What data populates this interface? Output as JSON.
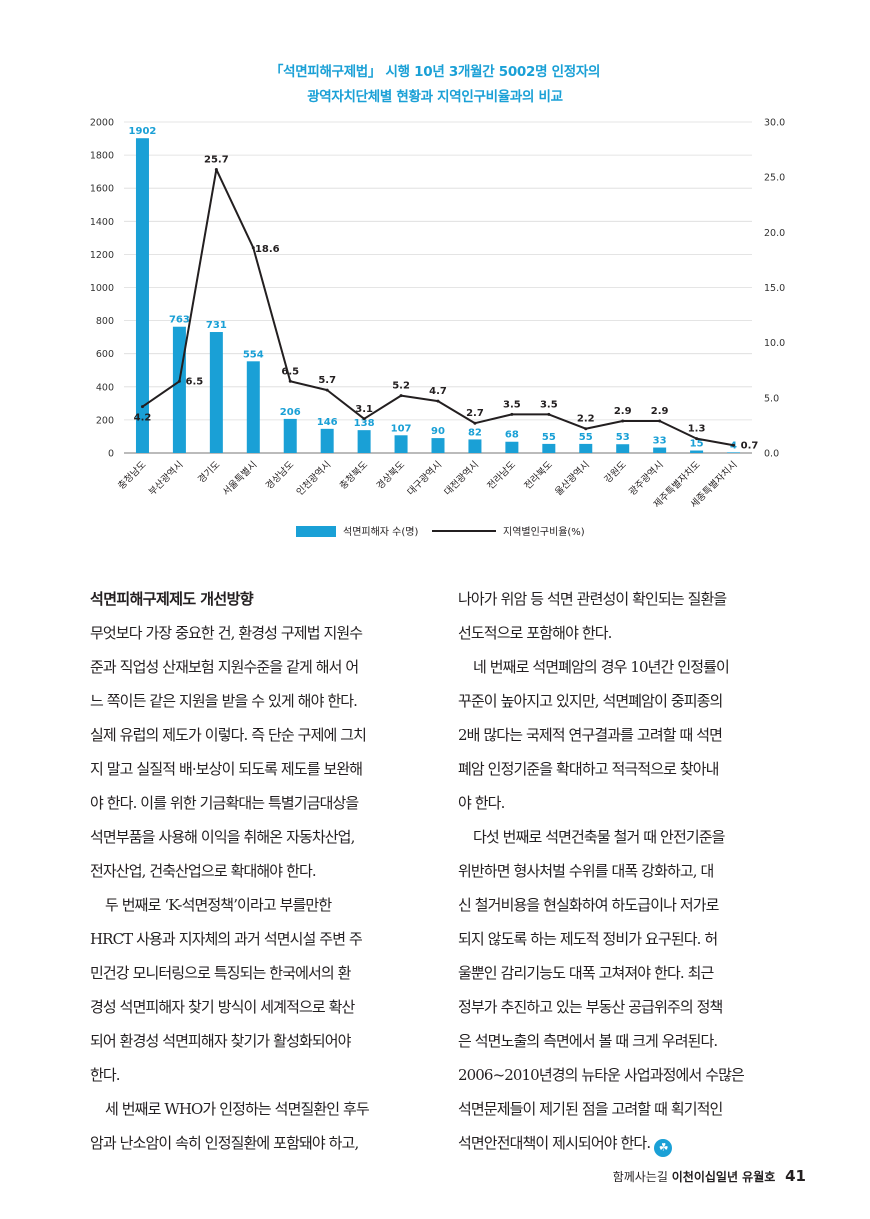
{
  "chart_data": {
    "type": "bar",
    "title_lines": [
      "「석면피해구제법」 시행 10년 3개월간 5002명 인정자의",
      "광역자치단체별 현황과 지역인구비율과의 비교"
    ],
    "categories": [
      "충청남도",
      "부산광역시",
      "경기도",
      "서울특별시",
      "경상남도",
      "인천광역시",
      "충청북도",
      "경상북도",
      "대구광역시",
      "대전광역시",
      "전라남도",
      "전라북도",
      "울산광역시",
      "강원도",
      "광주광역시",
      "제주특별자치도",
      "세종특별자치시"
    ],
    "series": [
      {
        "name": "석면피해자 수(명)",
        "type": "bar",
        "axis": "left",
        "values": [
          1902,
          763,
          731,
          554,
          206,
          146,
          138,
          107,
          90,
          82,
          68,
          55,
          55,
          53,
          33,
          15,
          4
        ]
      },
      {
        "name": "지역별인구비율(%)",
        "type": "line",
        "axis": "right",
        "values": [
          4.2,
          6.5,
          25.7,
          18.6,
          6.5,
          5.7,
          3.1,
          5.2,
          4.7,
          2.7,
          3.5,
          3.5,
          2.2,
          2.9,
          2.9,
          1.3,
          0.7
        ]
      }
    ],
    "y_left": {
      "min": 0,
      "max": 2000,
      "ticks": [
        "0",
        "200",
        "400",
        "600",
        "800",
        "1000",
        "1200",
        "1400",
        "1600",
        "1800",
        "2000"
      ]
    },
    "y_right": {
      "min": 0,
      "max": 30,
      "ticks": [
        "0.0",
        "5.0",
        "10.0",
        "15.0",
        "20.0",
        "25.0",
        "30.0"
      ]
    },
    "bar_labels": [
      "1902",
      "763",
      "731",
      "554",
      "206",
      "146",
      "138",
      "107",
      "90",
      "82",
      "68",
      "55",
      "55",
      "53",
      "33",
      "15",
      "4"
    ],
    "line_labels": [
      "4.2",
      "6.5",
      "25.7",
      "18.6",
      "6.5",
      "5.7",
      "3.1",
      "5.2",
      "4.7",
      "2.7",
      "3.5",
      "3.5",
      "2.2",
      "2.9",
      "2.9",
      "1.3",
      "0.7"
    ],
    "legend": [
      "석면피해자 수(명)",
      "지역별인구비율(%)"
    ],
    "legend_position": "bottom",
    "colors": {
      "bar": "#1aa0d6",
      "line": "#231f20",
      "grid": "#dcdcdc",
      "title": "#1aa0d6"
    }
  },
  "article": {
    "heading": "석면피해구제제도 개선방향",
    "left_lines": [
      "무엇보다 가장 중요한 건, 환경성 구제법 지원수",
      "준과 직업성 산재보험 지원수준을 같게 해서 어",
      "느 쪽이든 같은 지원을 받을 수 있게 해야 한다.",
      "실제 유럽의 제도가 이렇다. 즉 단순 구제에 그치",
      "지 말고 실질적 배·보상이 되도록 제도를 보완해",
      "야 한다. 이를 위한 기금확대는 특별기금대상을",
      "석면부품을 사용해 이익을 취해온 자동차산업,",
      "전자산업, 건축산업으로 확대해야 한다.",
      "두 번째로 ‘K-석면정책’이라고 부를만한",
      "HRCT 사용과 지자체의 과거 석면시설 주변 주",
      "민건강 모니터링으로 특징되는 한국에서의 환",
      "경성 석면피해자 찾기 방식이 세계적으로 확산",
      "되어 환경성 석면피해자 찾기가 활성화되어야",
      "한다.",
      "세 번째로 WHO가 인정하는 석면질환인 후두",
      "암과 난소암이 속히 인정질환에 포함돼야 하고,"
    ],
    "right_lines": [
      "나아가 위암 등 석면 관련성이 확인되는 질환을",
      "선도적으로 포함해야 한다.",
      "네 번째로 석면폐암의 경우 10년간 인정률이",
      "꾸준이 높아지고 있지만, 석면폐암이 중피종의",
      "2배 많다는 국제적 연구결과를 고려할 때 석면",
      "폐암 인정기준을 확대하고 적극적으로 찾아내",
      "야 한다.",
      "다섯 번째로 석면건축물 철거 때 안전기준을",
      "위반하면 형사처벌 수위를 대폭 강화하고, 대",
      "신 철거비용을 현실화하여 하도급이나 저가로",
      "되지 않도록 하는 제도적 정비가 요구된다. 허",
      "울뿐인 감리기능도 대폭 고쳐져야 한다. 최근",
      "정부가 추진하고 있는 부동산 공급위주의 정책",
      "은 석면노출의 측면에서 볼 때 크게 우려된다.",
      "2006~2010년경의 뉴타운 사업과정에서 수많은",
      "석면문제들이 제기된 점을 고려할 때 획기적인",
      "석면안전대책이 제시되어야 한다."
    ],
    "end_mark_glyph": "☘"
  },
  "footer": {
    "text": "함께사는길",
    "magazine": "이천이십일년 유월호",
    "page": "41"
  }
}
